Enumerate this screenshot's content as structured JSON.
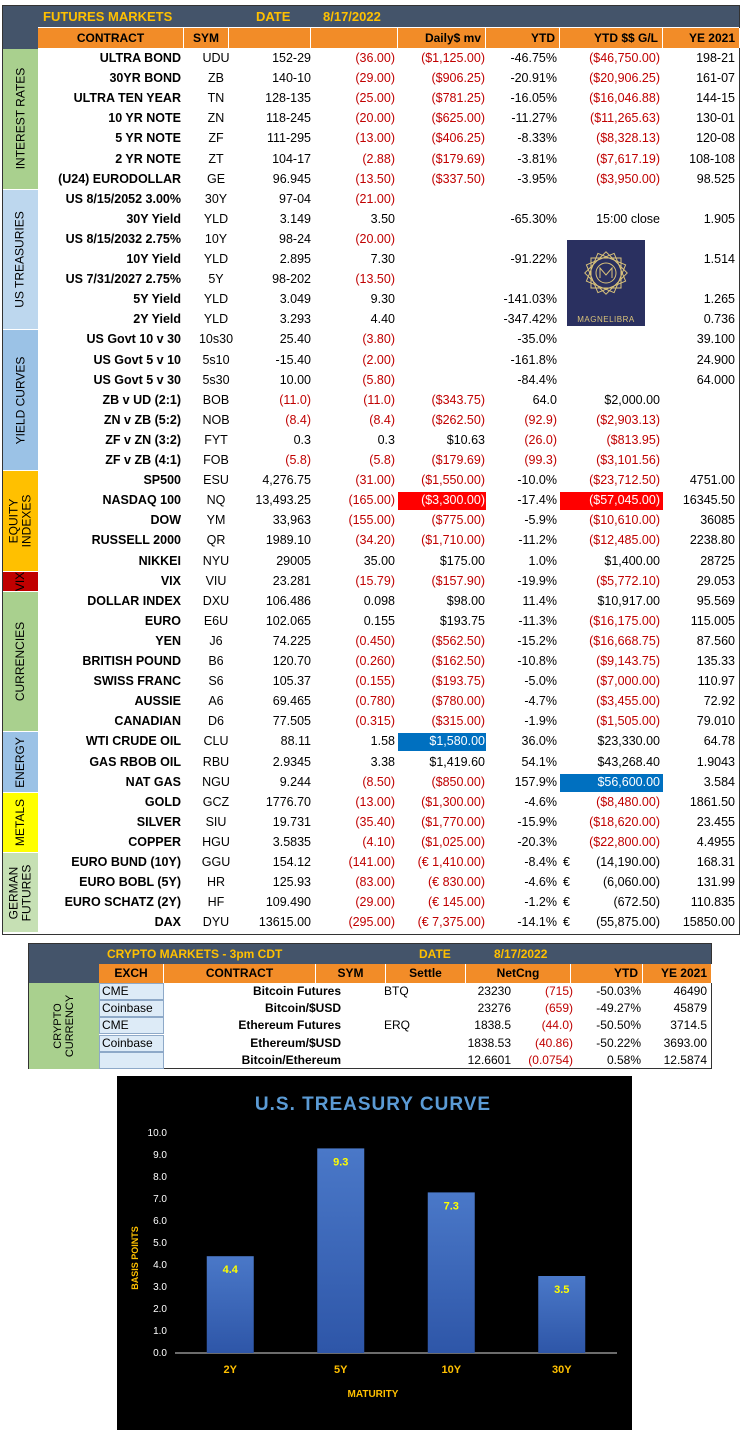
{
  "futures": {
    "title": "FUTURES MARKETS",
    "date_label": "DATE",
    "date": "8/17/2022",
    "headers": {
      "contract": "CONTRACT",
      "sym": "SYM",
      "daily_mv": "Daily$ mv",
      "ytd": "YTD",
      "ytd_gl": "YTD $$ G/L",
      "ye": "YE 2021"
    },
    "sectors": [
      {
        "label": "INTEREST RATES",
        "color": "#a9d08e"
      },
      {
        "label": "US TREASURIES",
        "color": "#bdd7ee"
      },
      {
        "label": "YIELD CURVES",
        "color": "#9bc2e6"
      },
      {
        "label": "EQUITY\nINDEXES",
        "color": "#ffc000"
      },
      {
        "label": "VIX",
        "color": "#c00000"
      },
      {
        "label": "CURRENCIES",
        "color": "#a9d08e"
      },
      {
        "label": "ENERGY",
        "color": "#9bc2e6"
      },
      {
        "label": "METALS",
        "color": "#ffff00"
      },
      {
        "label": "GERMAN\nFUTURES",
        "color": "#c6e0b4"
      }
    ],
    "rows": [
      {
        "contract": "ULTRA BOND",
        "sym": "UDU",
        "price": "152-29",
        "chg": "(36.00)",
        "dmv": "($1,125.00)",
        "ytd": "-46.75%",
        "eur": "",
        "ytd_gl": "($46,750.00)",
        "ye": "198-21"
      },
      {
        "contract": "30YR BOND",
        "sym": "ZB",
        "price": "140-10",
        "chg": "(29.00)",
        "dmv": "($906.25)",
        "ytd": "-20.91%",
        "eur": "",
        "ytd_gl": "($20,906.25)",
        "ye": "161-07"
      },
      {
        "contract": "ULTRA TEN YEAR",
        "sym": "TN",
        "price": "128-135",
        "chg": "(25.00)",
        "dmv": "($781.25)",
        "ytd": "-16.05%",
        "eur": "",
        "ytd_gl": "($16,046.88)",
        "ye": "144-15"
      },
      {
        "contract": "10 YR NOTE",
        "sym": "ZN",
        "price": "118-245",
        "chg": "(20.00)",
        "dmv": "($625.00)",
        "ytd": "-11.27%",
        "eur": "",
        "ytd_gl": "($11,265.63)",
        "ye": "130-01"
      },
      {
        "contract": "5 YR NOTE",
        "sym": "ZF",
        "price": "111-295",
        "chg": "(13.00)",
        "dmv": "($406.25)",
        "ytd": "-8.33%",
        "eur": "",
        "ytd_gl": "($8,328.13)",
        "ye": "120-08"
      },
      {
        "contract": "2 YR NOTE",
        "sym": "ZT",
        "price": "104-17",
        "chg": "(2.88)",
        "dmv": "($179.69)",
        "ytd": "-3.81%",
        "eur": "",
        "ytd_gl": "($7,617.19)",
        "ye": "108-108"
      },
      {
        "contract": "(U24) EURODOLLAR",
        "sym": "GE",
        "price": "96.945",
        "chg": "(13.50)",
        "dmv": "($337.50)",
        "ytd": "-3.95%",
        "eur": "",
        "ytd_gl": "($3,950.00)",
        "ye": "98.525"
      },
      {
        "contract": "US 8/15/2052 3.00%",
        "sym": "30Y",
        "price": "97-04",
        "chg": "(21.00)",
        "dmv": "",
        "ytd": "",
        "eur": "",
        "ytd_gl": "",
        "ye": ""
      },
      {
        "contract": "30Y Yield",
        "sym": "YLD",
        "price": "3.149",
        "chg": "3.50",
        "dmv": "",
        "ytd": "-65.30%",
        "eur": "",
        "ytd_gl": "15:00 close",
        "ye": "1.905"
      },
      {
        "contract": "US 8/15/2032 2.75%",
        "sym": "10Y",
        "price": "98-24",
        "chg": "(20.00)",
        "dmv": "",
        "ytd": "",
        "eur": "",
        "ytd_gl": "",
        "ye": ""
      },
      {
        "contract": "10Y Yield",
        "sym": "YLD",
        "price": "2.895",
        "chg": "7.30",
        "dmv": "",
        "ytd": "-91.22%",
        "eur": "",
        "ytd_gl": "",
        "ye": "1.514"
      },
      {
        "contract": "US 7/31/2027 2.75%",
        "sym": "5Y",
        "price": "98-202",
        "chg": "(13.50)",
        "dmv": "",
        "ytd": "",
        "eur": "",
        "ytd_gl": "",
        "ye": ""
      },
      {
        "contract": "5Y Yield",
        "sym": "YLD",
        "price": "3.049",
        "chg": "9.30",
        "dmv": "",
        "ytd": "-141.03%",
        "eur": "",
        "ytd_gl": "",
        "ye": "1.265"
      },
      {
        "contract": "2Y Yield",
        "sym": "YLD",
        "price": "3.293",
        "chg": "4.40",
        "dmv": "",
        "ytd": "-347.42%",
        "eur": "",
        "ytd_gl": "",
        "ye": "0.736"
      },
      {
        "contract": "US Govt 10 v 30",
        "sym": "10s30",
        "price": "25.40",
        "chg": "(3.80)",
        "dmv": "",
        "ytd": "-35.0%",
        "eur": "",
        "ytd_gl": "",
        "ye": "39.100"
      },
      {
        "contract": "US Govt 5 v 10",
        "sym": "5s10",
        "price": "-15.40",
        "chg": "(2.00)",
        "dmv": "",
        "ytd": "-161.8%",
        "eur": "",
        "ytd_gl": "",
        "ye": "24.900"
      },
      {
        "contract": "US Govt 5 v 30",
        "sym": "5s30",
        "price": "10.00",
        "chg": "(5.80)",
        "dmv": "",
        "ytd": "-84.4%",
        "eur": "",
        "ytd_gl": "",
        "ye": "64.000"
      },
      {
        "contract": "ZB v UD (2:1)",
        "sym": "BOB",
        "price": "(11.0)",
        "chg": "(11.0)",
        "dmv": "($343.75)",
        "ytd": "64.0",
        "eur": "",
        "ytd_gl": "$2,000.00",
        "ye": ""
      },
      {
        "contract": "ZN v ZB (5:2)",
        "sym": "NOB",
        "price": "(8.4)",
        "chg": "(8.4)",
        "dmv": "($262.50)",
        "ytd": "(92.9)",
        "eur": "",
        "ytd_gl": "($2,903.13)",
        "ye": ""
      },
      {
        "contract": "ZF v ZN (3:2)",
        "sym": "FYT",
        "price": "0.3",
        "chg": "0.3",
        "dmv": "$10.63",
        "ytd": "(26.0)",
        "eur": "",
        "ytd_gl": "($813.95)",
        "ye": ""
      },
      {
        "contract": "ZF v ZB (4:1)",
        "sym": "FOB",
        "price": "(5.8)",
        "chg": "(5.8)",
        "dmv": "($179.69)",
        "ytd": "(99.3)",
        "eur": "",
        "ytd_gl": "($3,101.56)",
        "ye": ""
      },
      {
        "contract": "SP500",
        "sym": "ESU",
        "price": "4,276.75",
        "chg": "(31.00)",
        "dmv": "($1,550.00)",
        "ytd": "-10.0%",
        "eur": "",
        "ytd_gl": "($23,712.50)",
        "ye": "4751.00"
      },
      {
        "contract": "NASDAQ 100",
        "sym": "NQ",
        "price": "13,493.25",
        "chg": "(165.00)",
        "dmv": "($3,300.00)",
        "ytd": "-17.4%",
        "eur": "",
        "ytd_gl": "($57,045.00)",
        "ye": "16345.50"
      },
      {
        "contract": "DOW",
        "sym": "YM",
        "price": "33,963",
        "chg": "(155.00)",
        "dmv": "($775.00)",
        "ytd": "-5.9%",
        "eur": "",
        "ytd_gl": "($10,610.00)",
        "ye": "36085"
      },
      {
        "contract": "RUSSELL 2000",
        "sym": "QR",
        "price": "1989.10",
        "chg": "(34.20)",
        "dmv": "($1,710.00)",
        "ytd": "-11.2%",
        "eur": "",
        "ytd_gl": "($12,485.00)",
        "ye": "2238.80"
      },
      {
        "contract": "NIKKEI",
        "sym": "NYU",
        "price": "29005",
        "chg": "35.00",
        "dmv": "$175.00",
        "ytd": "1.0%",
        "eur": "",
        "ytd_gl": "$1,400.00",
        "ye": "28725"
      },
      {
        "contract": "VIX",
        "sym": "VIU",
        "price": "23.281",
        "chg": "(15.79)",
        "dmv": "($157.90)",
        "ytd": "-19.9%",
        "eur": "",
        "ytd_gl": "($5,772.10)",
        "ye": "29.053"
      },
      {
        "contract": "DOLLAR INDEX",
        "sym": "DXU",
        "price": "106.486",
        "chg": "0.098",
        "dmv": "$98.00",
        "ytd": "11.4%",
        "eur": "",
        "ytd_gl": "$10,917.00",
        "ye": "95.569"
      },
      {
        "contract": "EURO",
        "sym": "E6U",
        "price": "102.065",
        "chg": "0.155",
        "dmv": "$193.75",
        "ytd": "-11.3%",
        "eur": "",
        "ytd_gl": "($16,175.00)",
        "ye": "115.005"
      },
      {
        "contract": "YEN",
        "sym": "J6",
        "price": "74.225",
        "chg": "(0.450)",
        "dmv": "($562.50)",
        "ytd": "-15.2%",
        "eur": "",
        "ytd_gl": "($16,668.75)",
        "ye": "87.560"
      },
      {
        "contract": "BRITISH POUND",
        "sym": "B6",
        "price": "120.70",
        "chg": "(0.260)",
        "dmv": "($162.50)",
        "ytd": "-10.8%",
        "eur": "",
        "ytd_gl": "($9,143.75)",
        "ye": "135.33"
      },
      {
        "contract": "SWISS FRANC",
        "sym": "S6",
        "price": "105.37",
        "chg": "(0.155)",
        "dmv": "($193.75)",
        "ytd": "-5.0%",
        "eur": "",
        "ytd_gl": "($7,000.00)",
        "ye": "110.97"
      },
      {
        "contract": "AUSSIE",
        "sym": "A6",
        "price": "69.465",
        "chg": "(0.780)",
        "dmv": "($780.00)",
        "ytd": "-4.7%",
        "eur": "",
        "ytd_gl": "($3,455.00)",
        "ye": "72.92"
      },
      {
        "contract": "CANADIAN",
        "sym": "D6",
        "price": "77.505",
        "chg": "(0.315)",
        "dmv": "($315.00)",
        "ytd": "-1.9%",
        "eur": "",
        "ytd_gl": "($1,505.00)",
        "ye": "79.010"
      },
      {
        "contract": "WTI CRUDE OIL",
        "sym": "CLU",
        "price": "88.11",
        "chg": "1.58",
        "dmv": "$1,580.00",
        "ytd": "36.0%",
        "eur": "",
        "ytd_gl": "$23,330.00",
        "ye": "64.78"
      },
      {
        "contract": "GAS RBOB OIL",
        "sym": "RBU",
        "price": "2.9345",
        "chg": "3.38",
        "dmv": "$1,419.60",
        "ytd": "54.1%",
        "eur": "",
        "ytd_gl": "$43,268.40",
        "ye": "1.9043"
      },
      {
        "contract": "NAT GAS",
        "sym": "NGU",
        "price": "9.244",
        "chg": "(8.50)",
        "dmv": "($850.00)",
        "ytd": "157.9%",
        "eur": "",
        "ytd_gl": "$56,600.00",
        "ye": "3.584"
      },
      {
        "contract": "GOLD",
        "sym": "GCZ",
        "price": "1776.70",
        "chg": "(13.00)",
        "dmv": "($1,300.00)",
        "ytd": "-4.6%",
        "eur": "",
        "ytd_gl": "($8,480.00)",
        "ye": "1861.50"
      },
      {
        "contract": "SILVER",
        "sym": "SIU",
        "price": "19.731",
        "chg": "(35.40)",
        "dmv": "($1,770.00)",
        "ytd": "-15.9%",
        "eur": "",
        "ytd_gl": "($18,620.00)",
        "ye": "23.455"
      },
      {
        "contract": "COPPER",
        "sym": "HGU",
        "price": "3.5835",
        "chg": "(4.10)",
        "dmv": "($1,025.00)",
        "ytd": "-20.3%",
        "eur": "",
        "ytd_gl": "($22,800.00)",
        "ye": "4.4955"
      },
      {
        "contract": "EURO BUND (10Y)",
        "sym": "GGU",
        "price": "154.12",
        "chg": "(141.00)",
        "dmv": "(€ 1,410.00)",
        "ytd": "-8.4%",
        "eur": "€",
        "ytd_gl": "(14,190.00)",
        "ye": "168.31"
      },
      {
        "contract": "EURO BOBL (5Y)",
        "sym": "HR",
        "price": "125.93",
        "chg": "(83.00)",
        "dmv": "(€ 830.00)",
        "ytd": "-4.6%",
        "eur": "€",
        "ytd_gl": "(6,060.00)",
        "ye": "131.99"
      },
      {
        "contract": "EURO SCHATZ (2Y)",
        "sym": "HF",
        "price": "109.490",
        "chg": "(29.00)",
        "dmv": "(€ 145.00)",
        "ytd": "-1.2%",
        "eur": "€",
        "ytd_gl": "(672.50)",
        "ye": "110.835"
      },
      {
        "contract": "DAX",
        "sym": "DYU",
        "price": "13615.00",
        "chg": "(295.00)",
        "dmv": "(€ 7,375.00)",
        "ytd": "-14.1%",
        "eur": "€",
        "ytd_gl": "(55,875.00)",
        "ye": "15850.00"
      }
    ],
    "logo_text": "MAGNELIBRA"
  },
  "crypto": {
    "title": "CRYPTO MARKETS - 3pm CDT",
    "date_label": "DATE",
    "date": "8/17/2022",
    "headers": {
      "exch": "EXCH",
      "contract": "CONTRACT",
      "sym": "SYM",
      "settle": "Settle",
      "netcng": "NetCng",
      "ytd": "YTD",
      "ye": "YE 2021"
    },
    "sector": "CRYPTO\nCURRENCY",
    "rows": [
      {
        "exch": "CME",
        "contract": "Bitcoin Futures",
        "sym": "BTQ",
        "settle": "23230",
        "net": "(715)",
        "ytd": "-50.03%",
        "ye": "46490"
      },
      {
        "exch": "Coinbase",
        "contract": "Bitcoin/$USD",
        "sym": "",
        "settle": "23276",
        "net": "(659)",
        "ytd": "-49.27%",
        "ye": "45879"
      },
      {
        "exch": "CME",
        "contract": "Ethereum Futures",
        "sym": "ERQ",
        "settle": "1838.5",
        "net": "(44.0)",
        "ytd": "-50.50%",
        "ye": "3714.5"
      },
      {
        "exch": "Coinbase",
        "contract": "Ethereum/$USD",
        "sym": "",
        "settle": "1838.53",
        "net": "(40.86)",
        "ytd": "-50.22%",
        "ye": "3693.00"
      },
      {
        "exch": "",
        "contract": "Bitcoin/Ethereum",
        "sym": "",
        "settle": "12.6601",
        "net": "(0.0754)",
        "ytd": "0.58%",
        "ye": "12.5874"
      }
    ]
  },
  "chart_data": {
    "type": "bar",
    "title": "U.S. TREASURY CURVE",
    "xlabel": "MATURITY",
    "ylabel": "BASIS POINTS",
    "categories": [
      "2Y",
      "5Y",
      "10Y",
      "30Y"
    ],
    "values": [
      4.4,
      9.3,
      7.3,
      3.5
    ],
    "data_labels": [
      "4.4",
      "9.3",
      "7.3",
      "3.5"
    ],
    "ylim": [
      0,
      10
    ],
    "yticks": [
      "0.0",
      "1.0",
      "2.0",
      "3.0",
      "4.0",
      "5.0",
      "6.0",
      "7.0",
      "8.0",
      "9.0",
      "10.0"
    ],
    "grid": false,
    "colors": {
      "background": "#000000",
      "bar": "#4472c4",
      "title": "#5b9bd5",
      "label": "#ffc000"
    }
  }
}
